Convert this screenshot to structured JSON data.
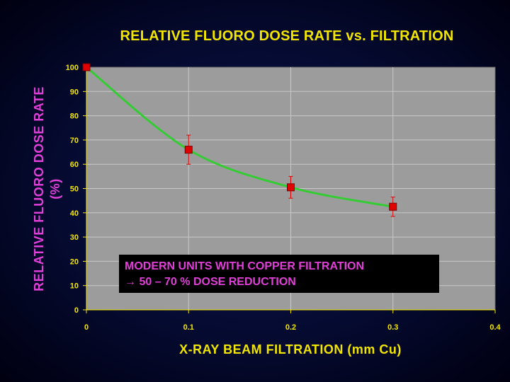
{
  "chart_data": {
    "type": "scatter",
    "title": "RELATIVE FLUORO DOSE RATE vs. FILTRATION",
    "xlabel": "X-RAY BEAM FILTRATION (mm Cu)",
    "ylabel": "RELATIVE FLUORO DOSE RATE (%)",
    "xlim": [
      0,
      0.4
    ],
    "ylim": [
      0,
      100
    ],
    "x_ticks": [
      "0",
      "0.1",
      "0.2",
      "0.3",
      "0.4"
    ],
    "y_ticks": [
      "0",
      "10",
      "20",
      "30",
      "40",
      "50",
      "60",
      "70",
      "80",
      "90",
      "100"
    ],
    "grid": true,
    "series": [
      {
        "x": [
          0,
          0.1,
          0.2,
          0.3
        ],
        "y": [
          100,
          66,
          50.5,
          42.5
        ],
        "error": [
          0,
          6,
          4.5,
          4
        ],
        "color": "#e00000"
      }
    ],
    "fit_curve": {
      "color": "#33cc33"
    },
    "annotation": {
      "line1": "MODERN UNITS WITH COPPER FILTRATION",
      "line2": "→ 50 – 70 % DOSE REDUCTION"
    },
    "colors": {
      "plot_background": "#9c9c9c",
      "title": "#f2e600",
      "ylabel": "#e040d8",
      "annotation_text": "#e040d8"
    }
  }
}
